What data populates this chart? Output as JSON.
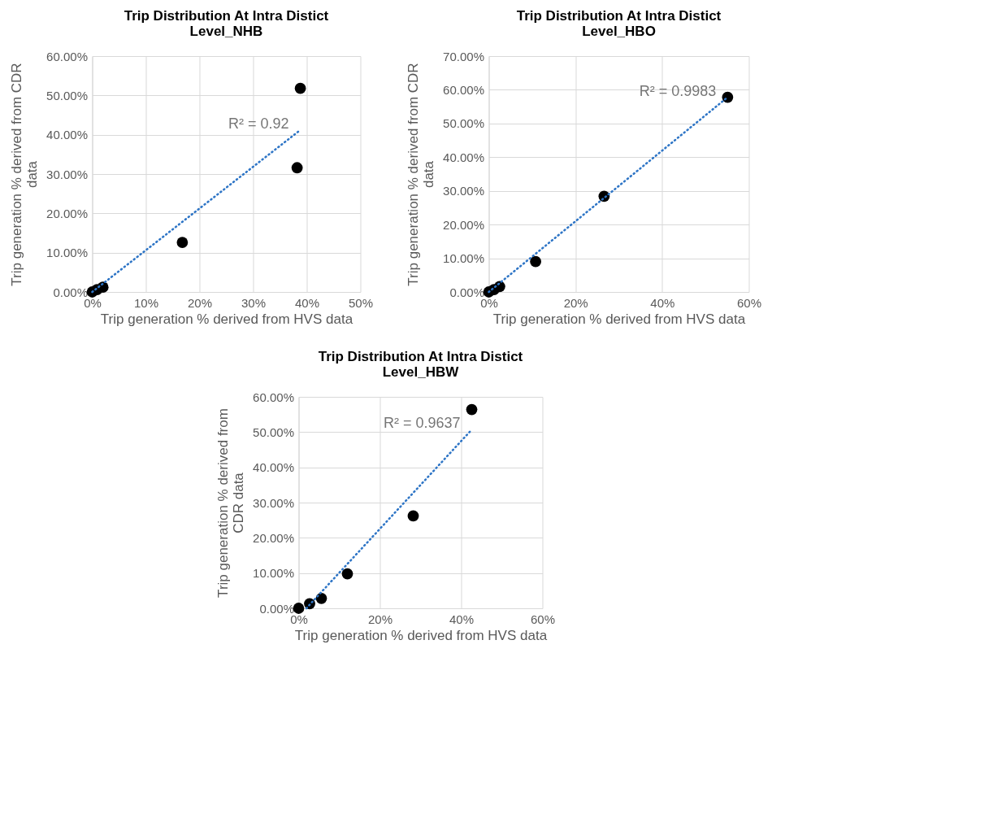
{
  "chart_data": [
    {
      "type": "scatter",
      "title": "Trip Distribution At Intra Distict Level_NHB",
      "xlabel": "Trip generation % derived from HVS data",
      "ylabel": "Trip generation % derived from CDR data",
      "grid": true,
      "x": [
        0,
        0.9,
        2,
        16.8,
        38.2,
        38.8
      ],
      "series": [
        {
          "marker": "circle",
          "color": "#000000",
          "values": [
            0,
            0.6,
            1.2,
            12.6,
            31.6,
            51.8
          ]
        },
        {
          "type": "line",
          "marker": "none",
          "color": "#2e75c6",
          "line_style": "dotted",
          "x": [
            0,
            38.8
          ],
          "values": [
            0,
            41.2
          ]
        }
      ],
      "xlim": [
        0,
        50
      ],
      "xticks": [
        {
          "value": 0,
          "label": "0%"
        },
        {
          "value": 10,
          "label": "10%"
        },
        {
          "value": 20,
          "label": "20%"
        },
        {
          "value": 30,
          "label": "30%"
        },
        {
          "value": 40,
          "label": "40%"
        },
        {
          "value": 50,
          "label": "50%"
        }
      ],
      "ylim": [
        0,
        60
      ],
      "yticks": [
        {
          "value": 0,
          "label": "0.00%"
        },
        {
          "value": 10,
          "label": "10.00%"
        },
        {
          "value": 20,
          "label": "20.00%"
        },
        {
          "value": 30,
          "label": "30.00%"
        },
        {
          "value": 40,
          "label": "40.00%"
        },
        {
          "value": 50,
          "label": "50.00%"
        },
        {
          "value": 60,
          "label": "60.00%"
        }
      ],
      "annotations": [
        "R² = 0.92"
      ]
    },
    {
      "type": "scatter",
      "title": "Trip Distribution At Intra Distict Level_HBO",
      "xlabel": "Trip generation % derived from HVS data",
      "ylabel": "Trip generation % derived from CDR data",
      "grid": true,
      "x": [
        0,
        1.2,
        2.5,
        10.8,
        26.6,
        55.1
      ],
      "series": [
        {
          "marker": "circle",
          "color": "#000000",
          "values": [
            0,
            0.7,
            1.6,
            9.0,
            28.4,
            57.8
          ]
        },
        {
          "type": "line",
          "marker": "none",
          "color": "#2e75c6",
          "line_style": "dotted",
          "x": [
            0,
            55.1
          ],
          "values": [
            0,
            57.8
          ]
        }
      ],
      "xlim": [
        0,
        60
      ],
      "xticks": [
        {
          "value": 0,
          "label": "0%"
        },
        {
          "value": 20,
          "label": "20%"
        },
        {
          "value": 40,
          "label": "40%"
        },
        {
          "value": 60,
          "label": "60%"
        }
      ],
      "ylim": [
        0,
        70
      ],
      "yticks": [
        {
          "value": 0,
          "label": "0.00%"
        },
        {
          "value": 10,
          "label": "10.00%"
        },
        {
          "value": 20,
          "label": "20.00%"
        },
        {
          "value": 30,
          "label": "30.00%"
        },
        {
          "value": 40,
          "label": "40.00%"
        },
        {
          "value": 50,
          "label": "50.00%"
        },
        {
          "value": 60,
          "label": "60.00%"
        },
        {
          "value": 70,
          "label": "70.00%"
        }
      ],
      "annotations": [
        "R² = 0.9983"
      ]
    },
    {
      "type": "scatter",
      "title": "Trip Distribution At Intra Distict Level_HBW",
      "xlabel": "Trip generation % derived from HVS data",
      "ylabel": "Trip generation % derived from CDR data",
      "grid": true,
      "x": [
        0,
        2.7,
        5.6,
        12.0,
        28.2,
        42.6
      ],
      "series": [
        {
          "marker": "circle",
          "color": "#000000",
          "values": [
            0,
            1.3,
            2.8,
            9.8,
            26.2,
            56.4
          ]
        },
        {
          "type": "line",
          "marker": "none",
          "color": "#2e75c6",
          "line_style": "dotted",
          "x": [
            1.9,
            42.6
          ],
          "values": [
            0,
            50.7
          ]
        }
      ],
      "xlim": [
        0,
        60
      ],
      "xticks": [
        {
          "value": 0,
          "label": "0%"
        },
        {
          "value": 20,
          "label": "20%"
        },
        {
          "value": 40,
          "label": "40%"
        },
        {
          "value": 60,
          "label": "60%"
        }
      ],
      "ylim": [
        0,
        60
      ],
      "yticks": [
        {
          "value": 0,
          "label": "0.00%"
        },
        {
          "value": 10,
          "label": "10.00%"
        },
        {
          "value": 20,
          "label": "20.00%"
        },
        {
          "value": 30,
          "label": "30.00%"
        },
        {
          "value": 40,
          "label": "40.00%"
        },
        {
          "value": 50,
          "label": "50.00%"
        },
        {
          "value": 60,
          "label": "60.00%"
        }
      ],
      "annotations": [
        "R² = 0.9637"
      ]
    }
  ]
}
